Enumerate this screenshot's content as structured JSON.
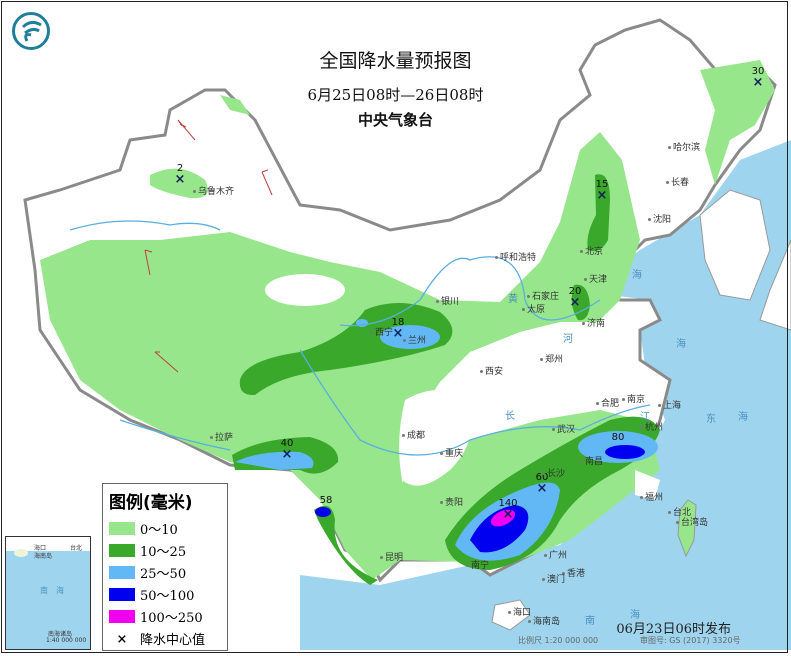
{
  "header": {
    "title": "全国降水量预报图",
    "subtitle": "6月25日08时—26日08时",
    "organization": "中央气象台"
  },
  "logo": {
    "icon": "cma-logo",
    "color": "#1f7f9a"
  },
  "legend": {
    "title": "图例(毫米)",
    "items": [
      {
        "label": "0～10",
        "color": "#98e68c"
      },
      {
        "label": "10～25",
        "color": "#3aa82a"
      },
      {
        "label": "25～50",
        "color": "#62b8f4"
      },
      {
        "label": "50～100",
        "color": "#0000f0"
      },
      {
        "label": "100～250",
        "color": "#f000f0"
      }
    ],
    "center_marker": {
      "symbol": "×",
      "label": "降水中心值"
    }
  },
  "rain_centers": [
    {
      "value": "2"
    },
    {
      "value": "30"
    },
    {
      "value": "15"
    },
    {
      "value": "20"
    },
    {
      "value": "18"
    },
    {
      "value": "40"
    },
    {
      "value": "58"
    },
    {
      "value": "60"
    },
    {
      "value": "140"
    },
    {
      "value": "80"
    }
  ],
  "cities": [
    "乌鲁木齐",
    "哈尔滨",
    "长春",
    "沈阳",
    "北京",
    "天津",
    "石家庄",
    "太原",
    "济南",
    "呼和浩特",
    "银川",
    "西宁",
    "兰州",
    "郑州",
    "西安",
    "南京",
    "合肥",
    "上海",
    "杭州",
    "武汉",
    "长沙",
    "南昌",
    "成都",
    "重庆",
    "贵阳",
    "昆明",
    "拉萨",
    "南宁",
    "广州",
    "福州",
    "台北",
    "香港",
    "澳门",
    "海口",
    "海南岛",
    "台湾岛"
  ],
  "seas": [
    "海",
    "海",
    "东",
    "海",
    "南",
    "海",
    "黄",
    "河",
    "长",
    "江"
  ],
  "inset": {
    "labels": [
      "海口",
      "海南岛",
      "台北",
      "南",
      "海",
      "南海诸岛"
    ],
    "scale": "1:40 000 000"
  },
  "footer": {
    "issued": "06月23日06时发布",
    "scale": "比例尺 1:20 000 000",
    "approval": "审图号: GS (2017) 3320号"
  },
  "colors": {
    "sea": "#9fd4ee",
    "border": "#888888",
    "river": "#5aaee0"
  }
}
